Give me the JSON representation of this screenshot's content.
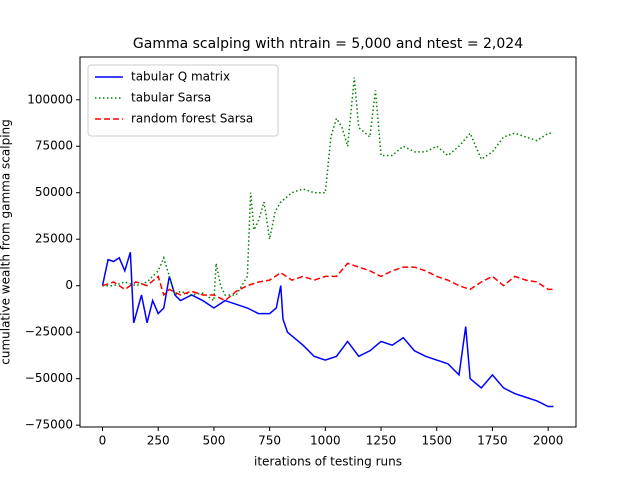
{
  "chart_data": {
    "type": "line",
    "title": "Gamma scalping with ntrain = 5,000 and ntest = 2,024",
    "x_label": "iterations of testing runs",
    "y_label": "cumulative wealth from gamma scalping",
    "xlim": [
      -101,
      2125
    ],
    "ylim": [
      -76000,
      123000
    ],
    "xticks": [
      0,
      250,
      500,
      750,
      1000,
      1250,
      1500,
      1750,
      2000
    ],
    "yticks": [
      {
        "value": -75000,
        "label": "−75000"
      },
      {
        "value": -50000,
        "label": "−50000"
      },
      {
        "value": -25000,
        "label": "−25000"
      },
      0,
      25000,
      50000,
      75000,
      100000
    ],
    "legend": "upper left",
    "series": [
      {
        "name": "tabular Q matrix",
        "color": "#0000ff",
        "linestyle": "solid",
        "x": [
          0,
          25,
          50,
          75,
          100,
          125,
          140,
          175,
          200,
          225,
          250,
          275,
          300,
          325,
          350,
          400,
          450,
          500,
          550,
          600,
          650,
          700,
          750,
          780,
          800,
          810,
          830,
          850,
          900,
          950,
          1000,
          1050,
          1100,
          1150,
          1200,
          1250,
          1300,
          1350,
          1400,
          1450,
          1500,
          1550,
          1600,
          1630,
          1650,
          1700,
          1750,
          1800,
          1850,
          1900,
          1950,
          2000,
          2024
        ],
        "values": [
          0,
          14000,
          13000,
          15000,
          8000,
          18000,
          -20000,
          -5000,
          -20000,
          -8000,
          -15000,
          -12000,
          5000,
          -5000,
          -8000,
          -5000,
          -8000,
          -12000,
          -8000,
          -10000,
          -12000,
          -15000,
          -15000,
          -12000,
          0,
          -18000,
          -25000,
          -27000,
          -32000,
          -38000,
          -40000,
          -38000,
          -30000,
          -38000,
          -35000,
          -30000,
          -32000,
          -28000,
          -35000,
          -38000,
          -40000,
          -42000,
          -48000,
          -22000,
          -50000,
          -55000,
          -48000,
          -55000,
          -58000,
          -60000,
          -62000,
          -65000,
          -65000
        ]
      },
      {
        "name": "tabular Sarsa",
        "color": "#008000",
        "linestyle": "dotted",
        "x": [
          0,
          50,
          100,
          150,
          200,
          250,
          275,
          300,
          325,
          350,
          400,
          450,
          500,
          510,
          530,
          550,
          600,
          650,
          665,
          680,
          700,
          725,
          750,
          775,
          800,
          850,
          900,
          950,
          1000,
          1025,
          1050,
          1075,
          1100,
          1130,
          1150,
          1200,
          1225,
          1250,
          1300,
          1350,
          1400,
          1450,
          1500,
          1550,
          1600,
          1650,
          1700,
          1750,
          1800,
          1850,
          1900,
          1950,
          2000,
          2024
        ],
        "values": [
          0,
          0,
          2000,
          0,
          2000,
          8000,
          15000,
          5000,
          -5000,
          -3000,
          -5000,
          -4000,
          -8000,
          12000,
          0,
          -5000,
          -5000,
          5000,
          50000,
          30000,
          35000,
          45000,
          25000,
          40000,
          45000,
          50000,
          52000,
          50000,
          50000,
          80000,
          90000,
          85000,
          75000,
          112000,
          85000,
          80000,
          105000,
          70000,
          70000,
          75000,
          72000,
          72000,
          75000,
          70000,
          75000,
          82000,
          68000,
          72000,
          80000,
          82000,
          80000,
          78000,
          82000,
          82000
        ]
      },
      {
        "name": "random forest Sarsa",
        "color": "#ff0000",
        "linestyle": "dashed",
        "x": [
          0,
          50,
          100,
          150,
          200,
          250,
          275,
          300,
          350,
          400,
          450,
          500,
          550,
          600,
          650,
          700,
          750,
          800,
          850,
          900,
          950,
          1000,
          1050,
          1100,
          1150,
          1200,
          1250,
          1300,
          1350,
          1400,
          1450,
          1500,
          1550,
          1600,
          1650,
          1700,
          1750,
          1800,
          1850,
          1900,
          1950,
          2000,
          2024
        ],
        "values": [
          0,
          2000,
          -2000,
          2000,
          0,
          5000,
          -5000,
          -2000,
          -5000,
          -3000,
          -5000,
          -5000,
          -8000,
          -3000,
          0,
          2000,
          3000,
          7000,
          3000,
          5000,
          3000,
          5000,
          5000,
          12000,
          10000,
          8000,
          5000,
          8000,
          10000,
          10000,
          8000,
          5000,
          3000,
          0,
          -2000,
          2000,
          5000,
          0,
          5000,
          3000,
          2000,
          -2000,
          -2000
        ]
      }
    ]
  }
}
